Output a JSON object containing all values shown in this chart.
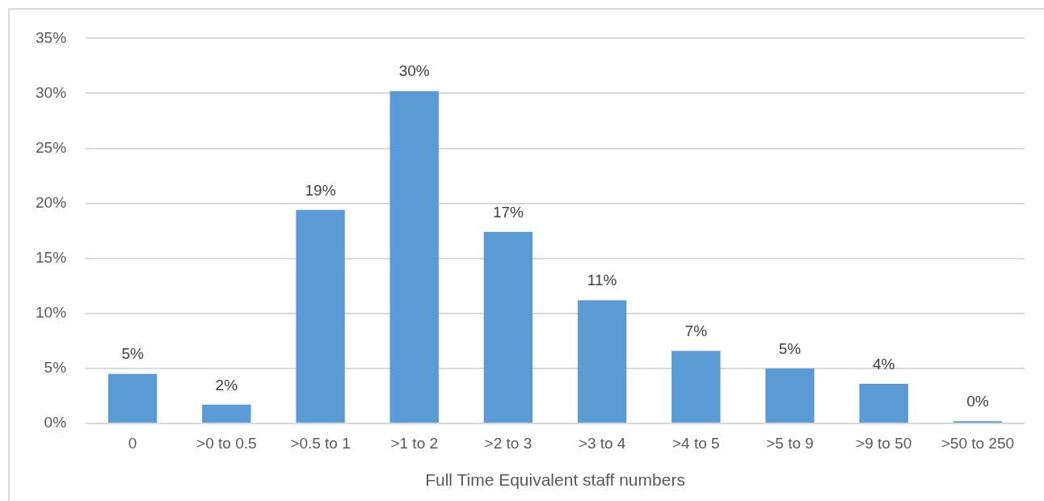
{
  "chart_data": {
    "type": "bar",
    "xlabel": "Full Time Equivalent staff numbers",
    "categories": [
      "0",
      ">0 to 0.5",
      ">0.5 to 1",
      ">1 to 2",
      ">2 to 3",
      ">3 to 4",
      ">4 to 5",
      ">5 to 9",
      ">9 to 50",
      ">50 to 250"
    ],
    "values": [
      4.5,
      1.7,
      19.4,
      30.2,
      17.4,
      11.2,
      6.6,
      5.0,
      3.6,
      0.2
    ],
    "value_labels": [
      "5%",
      "2%",
      "19%",
      "30%",
      "17%",
      "11%",
      "7%",
      "5%",
      "4%",
      "0%"
    ],
    "color": "#5b9bd5",
    "ylim": [
      0,
      35
    ],
    "yticks": [
      {
        "value": 0,
        "label": "0%"
      },
      {
        "value": 5,
        "label": "5%"
      },
      {
        "value": 10,
        "label": "10%"
      },
      {
        "value": 15,
        "label": "15%"
      },
      {
        "value": 20,
        "label": "20%"
      },
      {
        "value": 25,
        "label": "25%"
      },
      {
        "value": 30,
        "label": "30%"
      },
      {
        "value": 35,
        "label": "35%"
      }
    ],
    "grid": "y",
    "legend": false
  }
}
